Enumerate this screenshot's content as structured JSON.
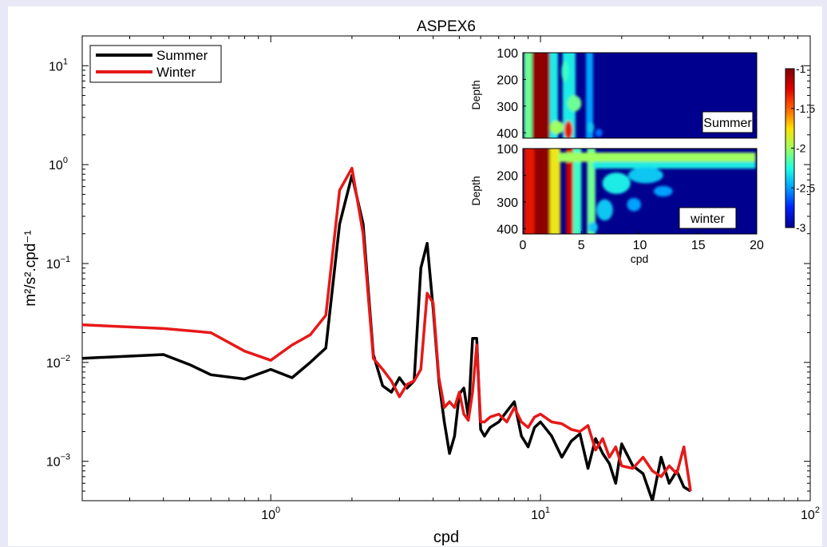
{
  "chart_data": [
    {
      "type": "line",
      "title": "ASPEX6",
      "xlabel": "cpd",
      "ylabel": "m²/s².cpd⁻¹",
      "x_scale": "log",
      "y_scale": "log",
      "xlim": [
        0.2,
        100
      ],
      "ylim": [
        0.0004,
        20
      ],
      "grid": false,
      "legend_position": "top-left",
      "x_ticks": [
        {
          "value": 1,
          "base": "10",
          "exp": "0"
        },
        {
          "value": 10,
          "base": "10",
          "exp": "1"
        },
        {
          "value": 100,
          "base": "10",
          "exp": "2"
        }
      ],
      "y_ticks": [
        {
          "value": 0.001,
          "base": "10",
          "exp": "−3"
        },
        {
          "value": 0.01,
          "base": "10",
          "exp": "−2"
        },
        {
          "value": 0.1,
          "base": "10",
          "exp": "−1"
        },
        {
          "value": 1,
          "base": "10",
          "exp": "0"
        },
        {
          "value": 10,
          "base": "10",
          "exp": "1"
        }
      ],
      "series": [
        {
          "name": "Summer",
          "color": "#000000",
          "x": [
            0.2,
            0.4,
            0.5,
            0.6,
            0.8,
            1.0,
            1.2,
            1.4,
            1.6,
            1.8,
            2.0,
            2.2,
            2.4,
            2.6,
            2.8,
            3.0,
            3.2,
            3.4,
            3.6,
            3.8,
            4.0,
            4.2,
            4.4,
            4.6,
            4.8,
            5.0,
            5.2,
            5.4,
            5.6,
            5.8,
            6.0,
            6.2,
            6.5,
            7.0,
            7.5,
            8.0,
            8.5,
            9.0,
            9.5,
            10,
            11,
            12,
            13,
            14,
            15,
            16,
            17,
            18,
            19,
            20,
            22,
            24,
            26,
            28,
            30,
            32,
            34,
            36
          ],
          "y": [
            0.011,
            0.012,
            0.0095,
            0.0075,
            0.0068,
            0.0085,
            0.007,
            0.01,
            0.014,
            0.25,
            0.78,
            0.25,
            0.012,
            0.0058,
            0.005,
            0.007,
            0.0055,
            0.0065,
            0.09,
            0.16,
            0.035,
            0.0065,
            0.0025,
            0.0012,
            0.0018,
            0.0048,
            0.0055,
            0.0028,
            0.0175,
            0.0175,
            0.0021,
            0.0018,
            0.0022,
            0.0025,
            0.0032,
            0.004,
            0.0018,
            0.0014,
            0.0022,
            0.0025,
            0.0018,
            0.0011,
            0.0016,
            0.0019,
            0.00085,
            0.0017,
            0.0012,
            0.00095,
            0.0006,
            0.0015,
            0.0009,
            0.00075,
            0.0004,
            0.0011,
            0.0006,
            0.0008,
            0.00055,
            0.0005
          ]
        },
        {
          "name": "Winter",
          "color": "#e61919",
          "x": [
            0.2,
            0.4,
            0.6,
            0.8,
            1.0,
            1.2,
            1.4,
            1.6,
            1.8,
            2.0,
            2.2,
            2.4,
            2.6,
            2.8,
            3.0,
            3.2,
            3.4,
            3.6,
            3.8,
            4.0,
            4.2,
            4.4,
            4.6,
            4.8,
            5.0,
            5.2,
            5.4,
            5.6,
            5.8,
            6.0,
            6.2,
            6.5,
            7.0,
            7.5,
            8.0,
            8.5,
            9.0,
            9.5,
            10,
            11,
            12,
            13,
            14,
            15,
            16,
            17,
            18,
            19,
            20,
            22,
            24,
            26,
            28,
            30,
            32,
            34,
            36
          ],
          "y": [
            0.024,
            0.022,
            0.02,
            0.013,
            0.0105,
            0.015,
            0.019,
            0.03,
            0.55,
            0.92,
            0.2,
            0.011,
            0.0085,
            0.0065,
            0.0045,
            0.006,
            0.0065,
            0.0085,
            0.05,
            0.04,
            0.007,
            0.0035,
            0.004,
            0.0035,
            0.005,
            0.003,
            0.0026,
            0.005,
            0.015,
            0.0025,
            0.0025,
            0.0028,
            0.003,
            0.0025,
            0.0035,
            0.0025,
            0.0022,
            0.0028,
            0.003,
            0.0025,
            0.0024,
            0.0021,
            0.002,
            0.0023,
            0.0013,
            0.0017,
            0.0011,
            0.0014,
            0.0009,
            0.00085,
            0.0011,
            0.0008,
            0.0007,
            0.0009,
            0.00075,
            0.0014,
            0.0005
          ]
        }
      ]
    },
    {
      "type": "heatmap",
      "panel": "Summer",
      "xlabel": "",
      "ylabel": "Depth",
      "xlim": [
        0,
        20
      ],
      "ylim": [
        100,
        420
      ],
      "x_ticks": [],
      "y_ticks": [
        100,
        200,
        300,
        400
      ],
      "features": [
        {
          "kind": "bar",
          "x0": 0.8,
          "x1": 2.3,
          "level": 0.98
        },
        {
          "kind": "bar",
          "x0": 0.1,
          "x1": 0.8,
          "level": 0.45
        },
        {
          "kind": "bar",
          "x0": 2.3,
          "x1": 3.0,
          "level": 0.35
        },
        {
          "kind": "bar",
          "x0": 3.4,
          "x1": 4.5,
          "level": 0.35
        },
        {
          "kind": "bar",
          "x0": 5.4,
          "x1": 6.0,
          "level": 0.25
        },
        {
          "kind": "blob",
          "x": 3.9,
          "depth": 390,
          "rx": 0.35,
          "ry": 35,
          "level": 0.85
        },
        {
          "kind": "blob",
          "x": 4.4,
          "depth": 290,
          "rx": 0.6,
          "ry": 30,
          "level": 0.45
        },
        {
          "kind": "blob",
          "x": 2.9,
          "depth": 380,
          "rx": 0.6,
          "ry": 25,
          "level": 0.5
        },
        {
          "kind": "blob",
          "x": 3.6,
          "depth": 170,
          "rx": 0.3,
          "ry": 40,
          "level": 0.4
        },
        {
          "kind": "blob",
          "x": 5.8,
          "depth": 380,
          "rx": 0.3,
          "ry": 20,
          "level": 0.3
        },
        {
          "kind": "blob",
          "x": 6.5,
          "depth": 400,
          "rx": 0.3,
          "ry": 15,
          "level": 0.2
        }
      ]
    },
    {
      "type": "heatmap",
      "panel": "winter",
      "xlabel": "cpd",
      "ylabel": "Depth",
      "xlim": [
        0,
        20
      ],
      "ylim": [
        100,
        420
      ],
      "x_ticks": [
        0,
        5,
        10,
        15,
        20
      ],
      "y_ticks": [
        100,
        200,
        300,
        400
      ],
      "features": [
        {
          "kind": "bar",
          "x0": 0.1,
          "x1": 1.0,
          "level": 0.85
        },
        {
          "kind": "bar",
          "x0": 1.0,
          "x1": 2.3,
          "level": 0.98
        },
        {
          "kind": "bar",
          "x0": 2.3,
          "x1": 3.2,
          "level": 0.6
        },
        {
          "kind": "bar",
          "x0": 3.7,
          "x1": 4.3,
          "level": 0.9
        },
        {
          "kind": "bar",
          "x0": 4.3,
          "x1": 5.0,
          "level": 0.4
        },
        {
          "kind": "bar",
          "x0": 5.5,
          "x1": 6.2,
          "level": 0.45
        },
        {
          "kind": "band",
          "x0": 3.0,
          "x1": 19.9,
          "d0": 115,
          "d1": 150,
          "level": 0.5
        },
        {
          "kind": "band",
          "x0": 6.0,
          "x1": 19.9,
          "d0": 150,
          "d1": 175,
          "level": 0.35
        },
        {
          "kind": "blob",
          "x": 8.0,
          "depth": 230,
          "rx": 1.2,
          "ry": 40,
          "level": 0.35
        },
        {
          "kind": "blob",
          "x": 10.5,
          "depth": 200,
          "rx": 1.5,
          "ry": 30,
          "level": 0.3
        },
        {
          "kind": "blob",
          "x": 7.0,
          "depth": 330,
          "rx": 0.7,
          "ry": 40,
          "level": 0.3
        },
        {
          "kind": "blob",
          "x": 9.5,
          "depth": 310,
          "rx": 0.6,
          "ry": 25,
          "level": 0.25
        },
        {
          "kind": "blob",
          "x": 12.0,
          "depth": 260,
          "rx": 0.8,
          "ry": 20,
          "level": 0.25
        },
        {
          "kind": "blob",
          "x": 6.0,
          "depth": 395,
          "rx": 0.4,
          "ry": 20,
          "level": 0.3
        }
      ]
    },
    {
      "type": "colorbar",
      "range": [
        -3,
        -1
      ],
      "ticks": [
        -1,
        -1.5,
        -2,
        -2.5,
        -3
      ],
      "tick_labels": [
        "-1",
        "-1.5",
        "-2",
        "-2.5",
        "-3"
      ],
      "colormap": [
        "#00008f",
        "#0020ff",
        "#00a0ff",
        "#20ffdf",
        "#a0ff60",
        "#ffe000",
        "#ff6000",
        "#df0000",
        "#800000"
      ]
    }
  ]
}
